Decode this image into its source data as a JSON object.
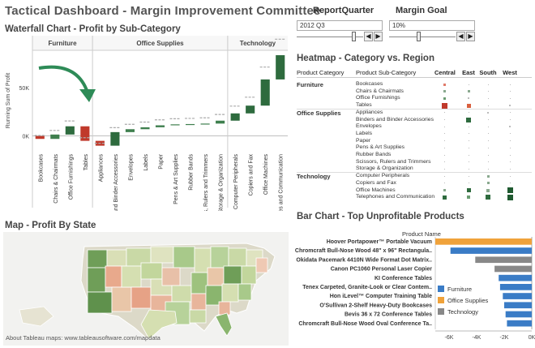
{
  "dashboard_title": "Tactical Dashboard - Margin Improvement Committee",
  "report_quarter": {
    "label": "ReportQuarter",
    "value": "2012 Q3"
  },
  "margin_goal": {
    "label": "Margin Goal",
    "value": "10%"
  },
  "stepper": {
    "prev": "◀",
    "next": "▶"
  },
  "colors": {
    "furniture": "#3a7cc6",
    "office_supplies": "#f0a23a",
    "technology": "#888888",
    "dark_green": "#2e6b3e",
    "red": "#c0392b",
    "arrow": "#2e8b57"
  },
  "waterfall": {
    "title": "Waterfall Chart - Profit by Sub-Category",
    "ylabel": "Running Sum of Profit",
    "categories": [
      {
        "name": "Furniture",
        "subs": [
          "Bookcases",
          "Chairs & Chairmats",
          "Office Furnishings",
          "Tables"
        ]
      },
      {
        "name": "Office Supplies",
        "subs": [
          "Appliances",
          "Binders and Binder Accessories",
          "Envelopes",
          "Labels",
          "Paper",
          "Pens & Art Supplies",
          "Rubber Bands",
          "Scissors, Rulers and Trimmers",
          "Storage & Organization"
        ]
      },
      {
        "name": "Technology",
        "subs": [
          "Computer Peripherals",
          "Copiers and Fax",
          "Office Machines",
          "Telephones and Communication"
        ]
      }
    ],
    "ticks": [
      {
        "value": 0,
        "label": "0K"
      },
      {
        "value": 50000,
        "label": "50K"
      }
    ],
    "ylim": [
      -12000,
      85000
    ]
  },
  "chart_data": {
    "type": "bar",
    "title": "Waterfall Chart - Profit by Sub-Category",
    "ylabel": "Running Sum of Profit",
    "categories": [
      "Bookcases",
      "Chairs & Chairmats",
      "Office Furnishings",
      "Tables",
      "Appliances",
      "Binders and Binder Accessories",
      "Envelopes",
      "Labels",
      "Paper",
      "Pens & Art Supplies",
      "Rubber Bands",
      "Scissors, Rulers and Trimmers",
      "Storage & Organization",
      "Computer Peripherals",
      "Copiers and Fax",
      "Office Machines",
      "Telephones and Communication"
    ],
    "values": [
      -3000,
      4500,
      8500,
      -15000,
      -5000,
      14000,
      3000,
      2000,
      2000,
      1000,
      300,
      500,
      3000,
      7500,
      8000,
      27000,
      25000
    ],
    "ylim": [
      -12000,
      85000
    ]
  },
  "heatmap": {
    "title": "Heatmap - Category vs. Region",
    "col_category": "Product Category",
    "col_sub": "Product Sub-Category",
    "regions": [
      "Central",
      "East",
      "South",
      "West"
    ],
    "rows": [
      {
        "cat": "Furniture",
        "sub": "Bookcases",
        "cells": [
          {
            "c": "#e07a6a",
            "s": 3
          },
          {
            "c": "#bbbbbb",
            "s": 1
          },
          {
            "c": "#bbbbbb",
            "s": 1
          },
          {
            "c": "#bbbbbb",
            "s": 1
          }
        ]
      },
      {
        "cat": "",
        "sub": "Chairs & Chairmats",
        "cells": [
          {
            "c": "#8aa98f",
            "s": 3
          },
          {
            "c": "#8aa98f",
            "s": 3
          },
          {
            "c": "#bbbbbb",
            "s": 1
          },
          {
            "c": "#bbbbbb",
            "s": 1
          }
        ]
      },
      {
        "cat": "",
        "sub": "Office Furnishings",
        "cells": [
          {
            "c": "#6b9c72",
            "s": 3
          },
          {
            "c": "#bbbbbb",
            "s": 2
          },
          {
            "c": "#bbbbbb",
            "s": 1
          },
          {
            "c": "#bbbbbb",
            "s": 1
          }
        ]
      },
      {
        "cat": "",
        "sub": "Tables",
        "cells": [
          {
            "c": "#c0392b",
            "s": 7
          },
          {
            "c": "#d9603f",
            "s": 5
          },
          {
            "c": "#bbbbbb",
            "s": 1
          },
          {
            "c": "#bbbbbb",
            "s": 2
          }
        ]
      },
      {
        "cat": "Office Supplies",
        "sub": "Appliances",
        "cells": [
          {
            "c": "#bbbbbb",
            "s": 1
          },
          {
            "c": "#bbbbbb",
            "s": 1
          },
          {
            "c": "#bbbbbb",
            "s": 2
          },
          {
            "c": "#bbbbbb",
            "s": 1
          }
        ]
      },
      {
        "cat": "",
        "sub": "Binders and Binder Accessories",
        "cells": [
          {
            "c": "#bbbbbb",
            "s": 1
          },
          {
            "c": "#2e6b3e",
            "s": 6
          },
          {
            "c": "#bbbbbb",
            "s": 1
          },
          {
            "c": "#bbbbbb",
            "s": 1
          }
        ]
      },
      {
        "cat": "",
        "sub": "Envelopes",
        "cells": [
          {
            "c": "#bbbbbb",
            "s": 1
          },
          {
            "c": "#bbbbbb",
            "s": 1
          },
          {
            "c": "#bbbbbb",
            "s": 1
          },
          {
            "c": "#bbbbbb",
            "s": 2
          }
        ]
      },
      {
        "cat": "",
        "sub": "Labels",
        "cells": [
          {
            "c": "#bbbbbb",
            "s": 1
          },
          {
            "c": "#bbbbbb",
            "s": 1
          },
          {
            "c": "#bbbbbb",
            "s": 1
          },
          {
            "c": "#bbbbbb",
            "s": 1
          }
        ]
      },
      {
        "cat": "",
        "sub": "Paper",
        "cells": [
          {
            "c": "#bbbbbb",
            "s": 1
          },
          {
            "c": "#bbbbbb",
            "s": 1
          },
          {
            "c": "#bbbbbb",
            "s": 1
          },
          {
            "c": "#bbbbbb",
            "s": 1
          }
        ]
      },
      {
        "cat": "",
        "sub": "Pens & Art Supplies",
        "cells": [
          {
            "c": "#bbbbbb",
            "s": 1
          },
          {
            "c": "#bbbbbb",
            "s": 1
          },
          {
            "c": "#bbbbbb",
            "s": 1
          },
          {
            "c": "#bbbbbb",
            "s": 1
          }
        ]
      },
      {
        "cat": "",
        "sub": "Rubber Bands",
        "cells": [
          {
            "c": "#bbbbbb",
            "s": 1
          },
          {
            "c": "#bbbbbb",
            "s": 1
          },
          {
            "c": "#bbbbbb",
            "s": 1
          },
          {
            "c": "#bbbbbb",
            "s": 1
          }
        ]
      },
      {
        "cat": "",
        "sub": "Scissors, Rulers and Trimmers",
        "cells": [
          {
            "c": "#bbbbbb",
            "s": 1
          },
          {
            "c": "#bbbbbb",
            "s": 1
          },
          {
            "c": "#bbbbbb",
            "s": 1
          },
          {
            "c": "#bbbbbb",
            "s": 1
          }
        ]
      },
      {
        "cat": "",
        "sub": "Storage & Organization",
        "cells": [
          {
            "c": "#bbbbbb",
            "s": 1
          },
          {
            "c": "#bbbbbb",
            "s": 1
          },
          {
            "c": "#bbbbbb",
            "s": 1
          },
          {
            "c": "#bbbbbb",
            "s": 1
          }
        ]
      },
      {
        "cat": "Technology",
        "sub": "Computer Peripherals",
        "cells": [
          {
            "c": "#bbbbbb",
            "s": 1
          },
          {
            "c": "#bbbbbb",
            "s": 1
          },
          {
            "c": "#8aa98f",
            "s": 3
          },
          {
            "c": "#bbbbbb",
            "s": 1
          }
        ]
      },
      {
        "cat": "",
        "sub": "Copiers and Fax",
        "cells": [
          {
            "c": "#bbbbbb",
            "s": 1
          },
          {
            "c": "#bbbbbb",
            "s": 1
          },
          {
            "c": "#8aa98f",
            "s": 3
          },
          {
            "c": "#bbbbbb",
            "s": 1
          }
        ]
      },
      {
        "cat": "",
        "sub": "Office Machines",
        "cells": [
          {
            "c": "#8aa98f",
            "s": 3
          },
          {
            "c": "#2e6b3e",
            "s": 5
          },
          {
            "c": "#8aa98f",
            "s": 4
          },
          {
            "c": "#1f5a30",
            "s": 7
          }
        ]
      },
      {
        "cat": "",
        "sub": "Telephones and Communication",
        "cells": [
          {
            "c": "#2e6b3e",
            "s": 5
          },
          {
            "c": "#6b9c72",
            "s": 4
          },
          {
            "c": "#2e6b3e",
            "s": 6
          },
          {
            "c": "#1f5a30",
            "s": 7
          }
        ]
      }
    ]
  },
  "map": {
    "title": "Map - Profit By State",
    "attribution": "About Tableau maps: www.tableausoftware.com/mapdata"
  },
  "unprofitable": {
    "title": "Bar Chart - Top Unprofitable Products",
    "header": "Product Name",
    "xlim": [
      -7000,
      0
    ],
    "ticks": [
      {
        "value": -6000,
        "label": "-6K"
      },
      {
        "value": -4000,
        "label": "-4K"
      },
      {
        "value": -2000,
        "label": "-2K"
      },
      {
        "value": 0,
        "label": "0K"
      }
    ],
    "products": [
      {
        "name": "Hoover Portapower™ Portable Vacuum",
        "value": -7000,
        "cat": "office_supplies"
      },
      {
        "name": "Chromcraft Bull-Nose Wood 48\" x 96\" Rectangula..",
        "value": -5900,
        "cat": "furniture"
      },
      {
        "name": "Okidata Pacemark 4410N Wide Format Dot Matrix..",
        "value": -4100,
        "cat": "technology"
      },
      {
        "name": "Canon PC1060 Personal Laser Copier",
        "value": -2700,
        "cat": "technology"
      },
      {
        "name": "KI Conference Tables",
        "value": -2400,
        "cat": "furniture"
      },
      {
        "name": "Tenex Carpeted, Granite-Look or Clear Contem..",
        "value": -2300,
        "cat": "furniture"
      },
      {
        "name": "Hon iLevel™ Computer Training Table",
        "value": -2100,
        "cat": "furniture"
      },
      {
        "name": "O'Sullivan 2-Shelf Heavy-Duty Bookcases",
        "value": -2000,
        "cat": "furniture"
      },
      {
        "name": "Bevis 36 x 72 Conference Tables",
        "value": -1900,
        "cat": "furniture"
      },
      {
        "name": "Chromcraft Bull-Nose Wood Oval Conference Ta..",
        "value": -1800,
        "cat": "furniture"
      }
    ],
    "legend": [
      {
        "label": "Furniture",
        "cat": "furniture"
      },
      {
        "label": "Office Supplies",
        "cat": "office_supplies"
      },
      {
        "label": "Technology",
        "cat": "technology"
      }
    ]
  }
}
